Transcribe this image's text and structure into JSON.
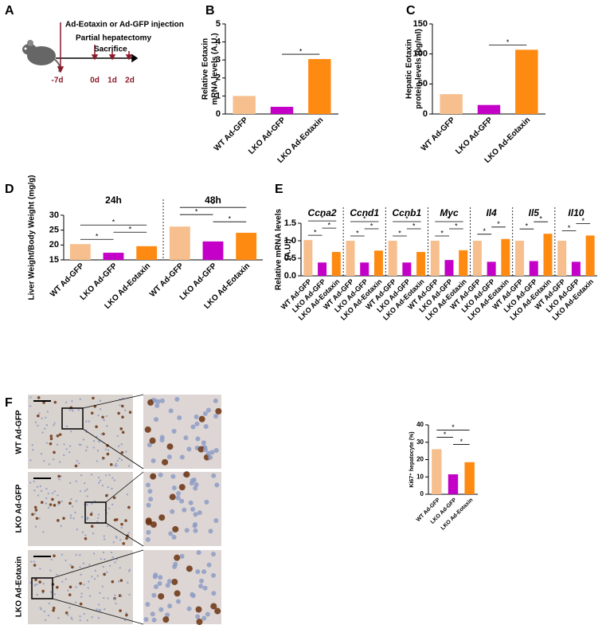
{
  "panel_labels": [
    "A",
    "B",
    "C",
    "D",
    "E",
    "F"
  ],
  "timeline": {
    "events": [
      "Ad-Eotaxin or Ad-GFP injection",
      "Partial hepatectomy",
      "Sacrifice"
    ],
    "days": [
      "-7d",
      "0d",
      "1d",
      "2d"
    ]
  },
  "micrographs": {
    "row_labels": [
      "WT Ad-GFP",
      "LKO Ad-GFP",
      "LKO Ad-Eotaxin"
    ]
  },
  "chart_data": [
    {
      "type": "bar",
      "y_label": [
        "Relative Eotaxin",
        "mRNA levels (A.U.)"
      ],
      "categories": [
        "WT Ad-GFP",
        "LKO Ad-GFP",
        "LKO Ad-Eotaxin"
      ],
      "values": [
        1.0,
        0.4,
        3.05
      ],
      "colors": [
        "#f6bf8d",
        "#c400c8",
        "#ff8a12"
      ],
      "ylim": [
        0,
        5
      ],
      "yticks": [
        0,
        1,
        2,
        3,
        4,
        5
      ],
      "comparisons": [
        {
          "pair": [
            "LKO Ad-GFP",
            "LKO Ad-Eotaxin"
          ],
          "label": "*"
        }
      ]
    },
    {
      "type": "bar",
      "y_label": [
        "Hepatic Eotaxin",
        "protein levels (pg/ml)"
      ],
      "categories": [
        "WT Ad-GFP",
        "LKO Ad-GFP",
        "LKO Ad-Eotaxin"
      ],
      "values": [
        33,
        15,
        107
      ],
      "colors": [
        "#f6bf8d",
        "#c400c8",
        "#ff8a12"
      ],
      "ylim": [
        0,
        150
      ],
      "yticks": [
        0,
        50,
        100,
        150
      ],
      "comparisons": [
        {
          "pair": [
            "LKO Ad-GFP",
            "LKO Ad-Eotaxin"
          ],
          "label": "*"
        }
      ]
    },
    {
      "type": "grouped_bar",
      "y_label": [
        "Liver Weight/Body Weight (mg/g)"
      ],
      "groups": [
        "24h",
        "48h"
      ],
      "series": [
        {
          "name": "WT Ad-GFP",
          "color": "#f6bf8d",
          "values": [
            20.3,
            26.2
          ]
        },
        {
          "name": "LKO Ad-GFP",
          "color": "#c400c8",
          "values": [
            17.4,
            21.2
          ]
        },
        {
          "name": "LKO Ad-Eotaxin",
          "color": "#ff8a12",
          "values": [
            19.6,
            24.1
          ]
        }
      ],
      "ylim": [
        15,
        30
      ],
      "yticks": [
        15,
        20,
        25,
        30
      ],
      "comparisons": [
        [
          {
            "pair": [
              "WT Ad-GFP",
              "LKO Ad-GFP"
            ],
            "label": "*"
          },
          {
            "pair": [
              "LKO Ad-GFP",
              "LKO Ad-Eotaxin"
            ],
            "label": "*"
          },
          {
            "pair": [
              "WT Ad-GFP",
              "LKO Ad-Eotaxin"
            ],
            "label": "*"
          }
        ],
        [
          {
            "pair": [
              "LKO Ad-GFP",
              "LKO Ad-Eotaxin"
            ],
            "label": "*"
          },
          {
            "pair": [
              "WT Ad-GFP",
              "LKO Ad-GFP"
            ],
            "label": "*"
          },
          {
            "pair": [
              "WT Ad-GFP",
              "LKO Ad-Eotaxin"
            ],
            "label": "*"
          }
        ]
      ]
    },
    {
      "type": "grouped_bar",
      "y_label": [
        "Relative mRNA levels",
        "(A.U.)"
      ],
      "group_italic": true,
      "groups": [
        "Ccna2",
        "Ccnd1",
        "Ccnb1",
        "Myc",
        "Il4",
        "Il5",
        "Il10"
      ],
      "series": [
        {
          "name": "WT Ad-GFP",
          "color": "#f6bf8d",
          "values": [
            1.02,
            1.0,
            1.0,
            1.0,
            1.0,
            1.0,
            1.0
          ]
        },
        {
          "name": "LKO Ad-GFP",
          "color": "#c400c8",
          "values": [
            0.38,
            0.38,
            0.38,
            0.45,
            0.4,
            0.42,
            0.4
          ]
        },
        {
          "name": "LKO Ad-Eotaxin",
          "color": "#ff8a12",
          "values": [
            0.68,
            0.72,
            0.68,
            0.73,
            1.05,
            1.2,
            1.15
          ]
        }
      ],
      "ylim": [
        0,
        1.5
      ],
      "yticks": [
        {
          "value": 0,
          "label": "0.0"
        },
        {
          "value": 0.5,
          "label": "0.5"
        },
        {
          "value": 1,
          "label": "1.0"
        },
        {
          "value": 1.5,
          "label": "1.5"
        }
      ],
      "comparisons": [
        [
          {
            "pair": [
              "WT Ad-GFP",
              "LKO Ad-GFP"
            ],
            "label": "*"
          },
          {
            "pair": [
              "LKO Ad-GFP",
              "LKO Ad-Eotaxin"
            ],
            "label": "*"
          },
          {
            "pair": [
              "WT Ad-GFP",
              "LKO Ad-Eotaxin"
            ],
            "label": "*"
          }
        ],
        [
          {
            "pair": [
              "WT Ad-GFP",
              "LKO Ad-GFP"
            ],
            "label": "*"
          },
          {
            "pair": [
              "LKO Ad-GFP",
              "LKO Ad-Eotaxin"
            ],
            "label": "*"
          },
          {
            "pair": [
              "WT Ad-GFP",
              "LKO Ad-Eotaxin"
            ],
            "label": "*"
          }
        ],
        [
          {
            "pair": [
              "WT Ad-GFP",
              "LKO Ad-GFP"
            ],
            "label": "*"
          },
          {
            "pair": [
              "LKO Ad-GFP",
              "LKO Ad-Eotaxin"
            ],
            "label": "*"
          },
          {
            "pair": [
              "WT Ad-GFP",
              "LKO Ad-Eotaxin"
            ],
            "label": "*"
          }
        ],
        [
          {
            "pair": [
              "WT Ad-GFP",
              "LKO Ad-GFP"
            ],
            "label": "*"
          },
          {
            "pair": [
              "LKO Ad-GFP",
              "LKO Ad-Eotaxin"
            ],
            "label": "*"
          },
          {
            "pair": [
              "WT Ad-GFP",
              "LKO Ad-Eotaxin"
            ],
            "label": "*"
          }
        ],
        [
          {
            "pair": [
              "WT Ad-GFP",
              "LKO Ad-GFP"
            ],
            "label": "*"
          },
          {
            "pair": [
              "LKO Ad-GFP",
              "LKO Ad-Eotaxin"
            ],
            "label": "*"
          }
        ],
        [
          {
            "pair": [
              "WT Ad-GFP",
              "LKO Ad-GFP"
            ],
            "label": "*"
          },
          {
            "pair": [
              "LKO Ad-GFP",
              "LKO Ad-Eotaxin"
            ],
            "label": "*"
          }
        ],
        [
          {
            "pair": [
              "WT Ad-GFP",
              "LKO Ad-GFP"
            ],
            "label": "*"
          },
          {
            "pair": [
              "LKO Ad-GFP",
              "LKO Ad-Eotaxin"
            ],
            "label": "*"
          }
        ]
      ]
    },
    {
      "type": "bar",
      "y_label": [
        "Ki67⁺ hepatocyte (%)"
      ],
      "categories": [
        "WT Ad-GFP",
        "LKO Ad-GFP",
        "LKO Ad-Eotaxin"
      ],
      "values": [
        26,
        11.5,
        18.5
      ],
      "colors": [
        "#f6bf8d",
        "#c400c8",
        "#ff8a12"
      ],
      "ylim": [
        0,
        40
      ],
      "yticks": [
        0,
        10,
        20,
        30,
        40
      ],
      "comparisons": [
        {
          "pair": [
            "LKO Ad-GFP",
            "LKO Ad-Eotaxin"
          ],
          "label": "*"
        },
        {
          "pair": [
            "WT Ad-GFP",
            "LKO Ad-GFP"
          ],
          "label": "*"
        },
        {
          "pair": [
            "WT Ad-GFP",
            "LKO Ad-Eotaxin"
          ],
          "label": "*"
        }
      ]
    }
  ]
}
